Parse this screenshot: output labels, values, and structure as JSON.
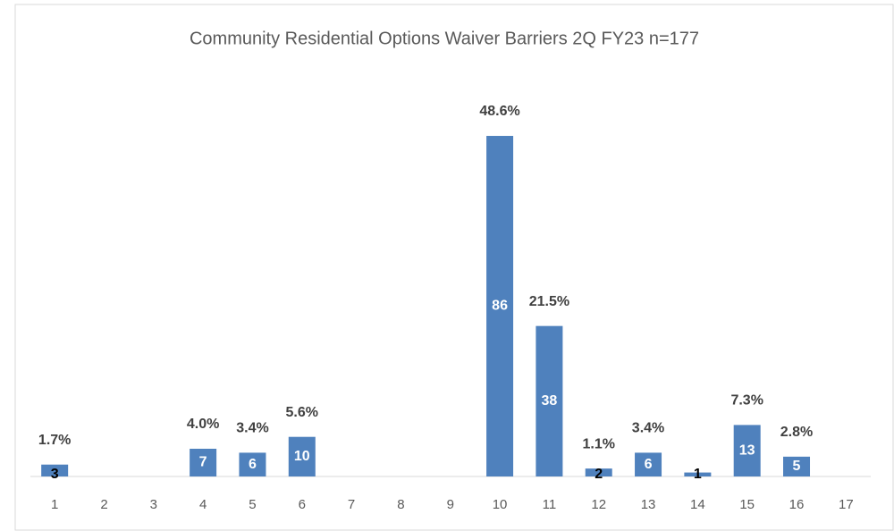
{
  "chart_data": {
    "type": "bar",
    "title": "Community Residential Options Waiver Barriers  2Q  FY23 n=177",
    "categories": [
      "1",
      "2",
      "3",
      "4",
      "5",
      "6",
      "7",
      "8",
      "9",
      "10",
      "11",
      "12",
      "13",
      "14",
      "15",
      "16",
      "17"
    ],
    "values": [
      3,
      null,
      null,
      7,
      6,
      10,
      null,
      null,
      null,
      86,
      38,
      2,
      6,
      1,
      13,
      5,
      null
    ],
    "percent_labels": [
      "1.7%",
      null,
      null,
      "4.0%",
      "3.4%",
      "5.6%",
      null,
      null,
      null,
      "48.6%",
      "21.5%",
      "1.1%",
      "3.4%",
      null,
      "7.3%",
      "2.8%",
      null
    ],
    "color": "#4f81bd",
    "ylim": [
      0,
      100
    ]
  }
}
